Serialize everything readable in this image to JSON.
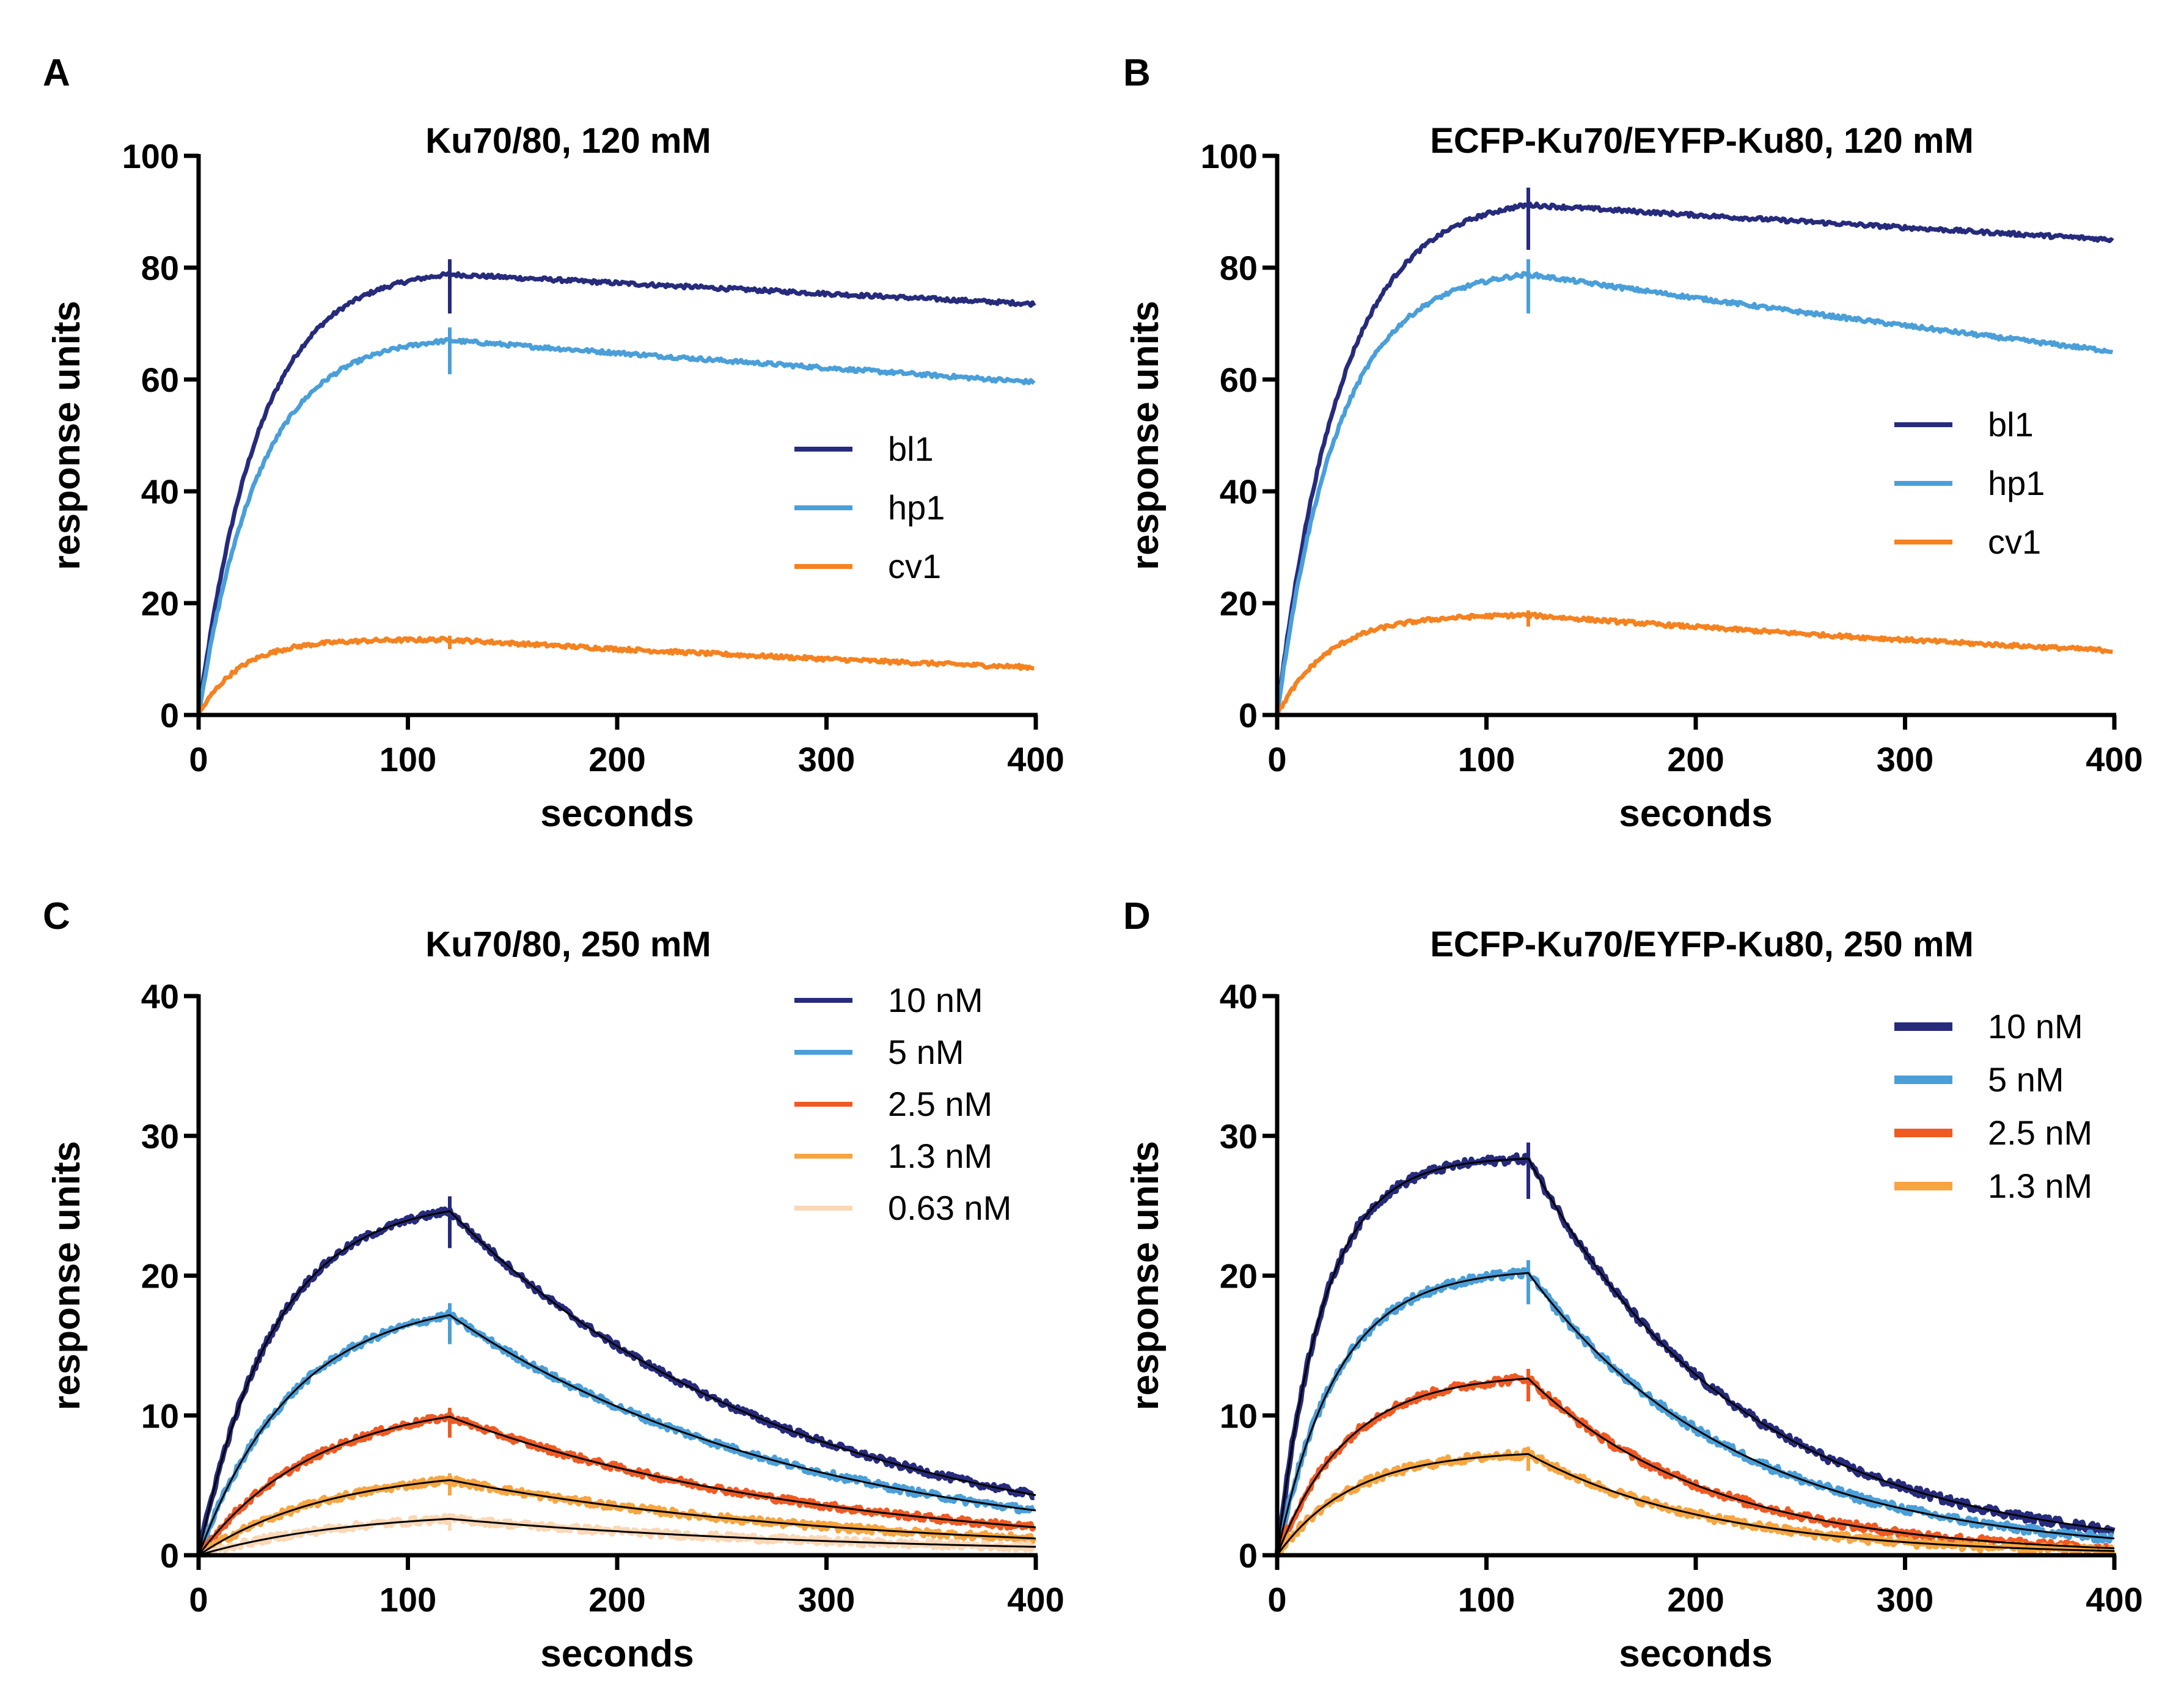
{
  "chart_data": [
    {
      "panel": "A",
      "type": "line",
      "title": "Ku70/80, 120 mM",
      "xlabel": "seconds",
      "ylabel": "response units",
      "xlim": [
        0,
        400
      ],
      "ylim": [
        0,
        100
      ],
      "xticks": [
        0,
        100,
        200,
        300,
        400
      ],
      "yticks": [
        0,
        20,
        40,
        60,
        80,
        100
      ],
      "legend_position": "right-center",
      "fit_curves": false,
      "series": [
        {
          "name": "bl1",
          "color": "#262b7c",
          "plateau": 80,
          "k": 0.035,
          "peak_time": 120,
          "end_value": 73.5,
          "noise": 0.35
        },
        {
          "name": "hp1",
          "color": "#4a9fd9",
          "plateau": 68,
          "k": 0.035,
          "peak_time": 120,
          "end_value": 59.5,
          "noise": 0.35
        },
        {
          "name": "cv1",
          "color": "#f58220",
          "plateau": 13.5,
          "k": 0.05,
          "peak_time": 120,
          "end_value": 8.5,
          "noise": 0.35
        }
      ]
    },
    {
      "panel": "B",
      "type": "line",
      "title": "ECFP-Ku70/EYFP-Ku80, 120 mM",
      "xlabel": "seconds",
      "ylabel": "response units",
      "xlim": [
        0,
        400
      ],
      "ylim": [
        0,
        100
      ],
      "xticks": [
        0,
        100,
        200,
        300,
        400
      ],
      "yticks": [
        0,
        20,
        40,
        60,
        80,
        100
      ],
      "legend_position": "right-center",
      "fit_curves": false,
      "series": [
        {
          "name": "bl1",
          "color": "#262b7c",
          "plateau": 93,
          "k": 0.033,
          "peak_time": 120,
          "end_value": 85,
          "noise": 0.35
        },
        {
          "name": "hp1",
          "color": "#4a9fd9",
          "plateau": 80,
          "k": 0.035,
          "peak_time": 120,
          "end_value": 65,
          "noise": 0.35
        },
        {
          "name": "cv1",
          "color": "#f58220",
          "plateau": 18,
          "k": 0.04,
          "peak_time": 120,
          "end_value": 11.5,
          "noise": 0.35
        }
      ]
    },
    {
      "panel": "C",
      "type": "line",
      "title": "Ku70/80, 250 mM",
      "xlabel": "seconds",
      "ylabel": "response units",
      "xlim": [
        0,
        400
      ],
      "ylim": [
        0,
        40
      ],
      "xticks": [
        0,
        100,
        200,
        300,
        400
      ],
      "yticks": [
        0,
        10,
        20,
        30,
        40
      ],
      "legend_position": "top-right",
      "fit_curves": true,
      "series": [
        {
          "name": "10 nM",
          "color": "#262b7c",
          "plateau": 25.5,
          "k": 0.028,
          "peak_time": 120,
          "end_value": 4.3,
          "noise": 0.25
        },
        {
          "name": "5 nM",
          "color": "#4a9fd9",
          "plateau": 18.5,
          "k": 0.022,
          "peak_time": 120,
          "end_value": 3.2,
          "noise": 0.25
        },
        {
          "name": "2.5 nM",
          "color": "#f05a22",
          "plateau": 11.2,
          "k": 0.018,
          "peak_time": 120,
          "end_value": 2,
          "noise": 0.25
        },
        {
          "name": "1.3 nM",
          "color": "#f7a540",
          "plateau": 6.3,
          "k": 0.016,
          "peak_time": 120,
          "end_value": 1.2,
          "noise": 0.25
        },
        {
          "name": "0.63 nM",
          "color": "#fad7b5",
          "plateau": 3.2,
          "k": 0.014,
          "peak_time": 120,
          "end_value": 0.6,
          "noise": 0.25
        }
      ]
    },
    {
      "panel": "D",
      "type": "line",
      "title": "ECFP-Ku70/EYFP-Ku80, 250 mM",
      "xlabel": "seconds",
      "ylabel": "response units",
      "xlim": [
        0,
        400
      ],
      "ylim": [
        0,
        40
      ],
      "xticks": [
        0,
        100,
        200,
        300,
        400
      ],
      "yticks": [
        0,
        10,
        20,
        30,
        40
      ],
      "legend_position": "top-right",
      "fit_curves": true,
      "series": [
        {
          "name": "10 nM",
          "color": "#262b7c",
          "plateau": 28.5,
          "k": 0.045,
          "peak_time": 120,
          "end_value": 1.8,
          "noise": 0.3
        },
        {
          "name": "5 nM",
          "color": "#4a9fd9",
          "plateau": 20.5,
          "k": 0.035,
          "peak_time": 120,
          "end_value": 1.2,
          "noise": 0.3
        },
        {
          "name": "2.5 nM",
          "color": "#f05a22",
          "plateau": 13,
          "k": 0.03,
          "peak_time": 120,
          "end_value": 0.5,
          "noise": 0.3
        },
        {
          "name": "1.3 nM",
          "color": "#f7a540",
          "plateau": 7.5,
          "k": 0.028,
          "peak_time": 120,
          "end_value": 0.3,
          "noise": 0.3
        }
      ]
    }
  ]
}
